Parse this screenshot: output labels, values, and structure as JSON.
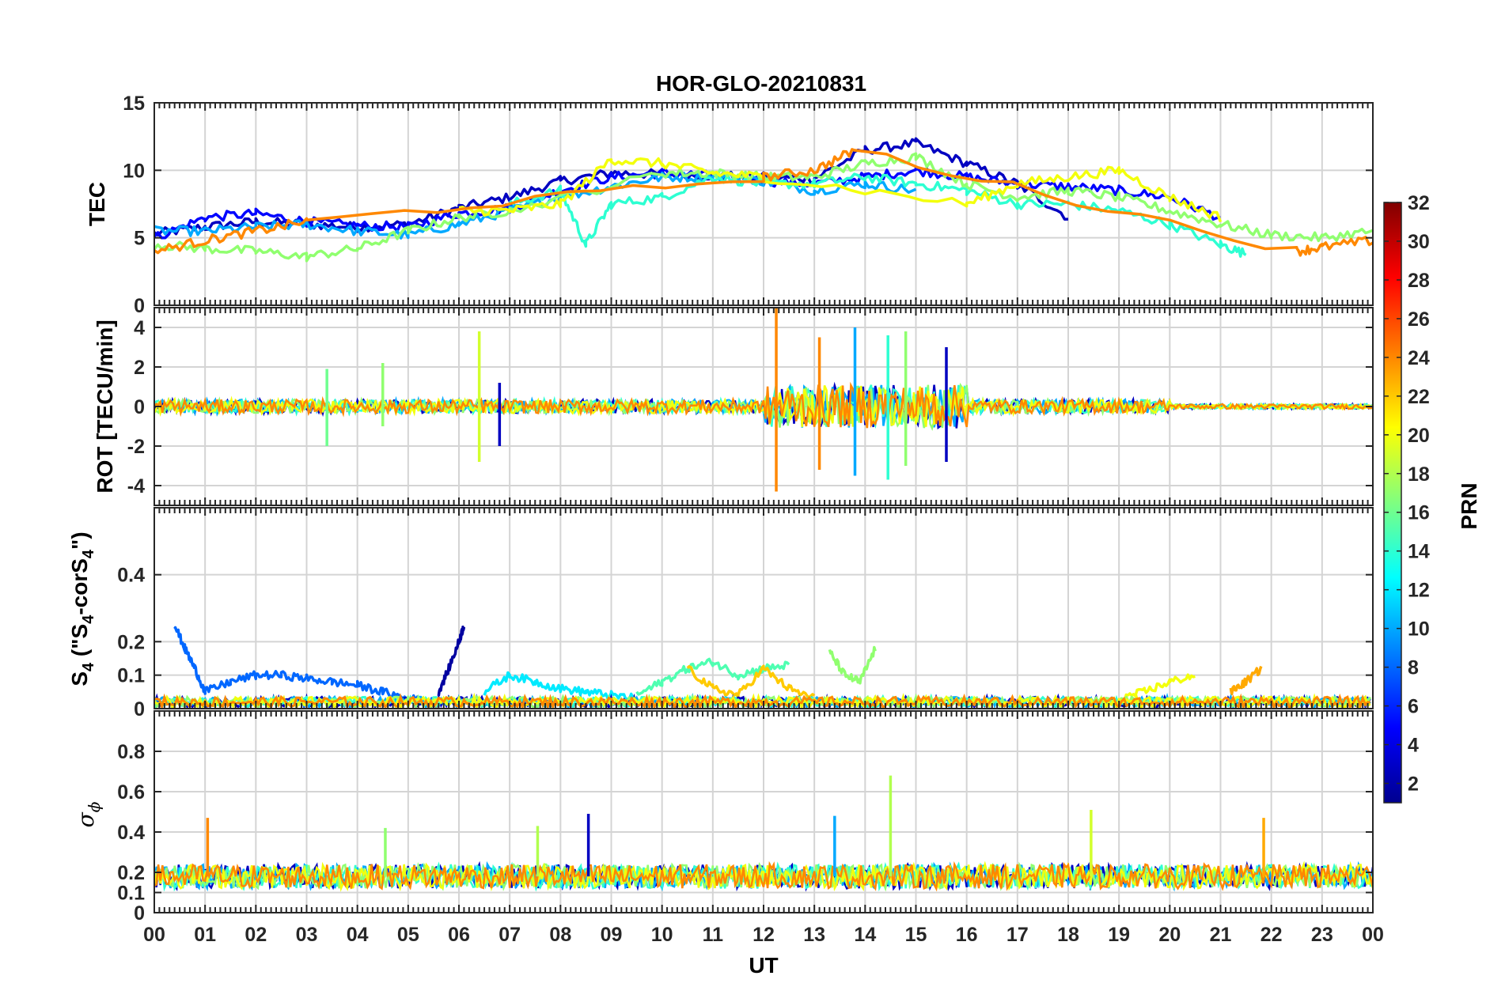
{
  "chart_data": {
    "type": "line",
    "title": "HOR-GLO-20210831",
    "xlabel": "UT",
    "x_tick_labels": [
      "00",
      "01",
      "02",
      "03",
      "04",
      "05",
      "06",
      "07",
      "08",
      "09",
      "10",
      "11",
      "12",
      "13",
      "14",
      "15",
      "16",
      "17",
      "18",
      "19",
      "20",
      "21",
      "22",
      "23",
      "00"
    ],
    "xlim": [
      0,
      24
    ],
    "colorbar": {
      "label": "PRN",
      "colormap": "jet",
      "range": [
        1,
        32
      ],
      "tick_labels": [
        "2",
        "4",
        "6",
        "8",
        "10",
        "12",
        "14",
        "16",
        "18",
        "20",
        "22",
        "24",
        "26",
        "28",
        "30",
        "32"
      ],
      "tick_values": [
        2,
        4,
        6,
        8,
        10,
        12,
        14,
        16,
        18,
        20,
        22,
        24,
        26,
        28,
        30,
        32
      ]
    },
    "panels": [
      {
        "name": "TEC",
        "ylabel": "TEC",
        "ylim": [
          0,
          15
        ],
        "yticks": [
          0,
          5,
          10,
          15
        ],
        "ytick_labels": [
          "0",
          "5",
          "10",
          "15"
        ],
        "series": [
          {
            "prn": 3,
            "x": [
              0,
              1,
              2,
              3,
              4,
              5,
              6,
              7,
              8,
              9,
              10,
              11,
              12,
              13,
              14,
              15,
              16,
              17,
              18
            ],
            "y": [
              5.3,
              5.8,
              6.2,
              6.0,
              5.8,
              6.0,
              7.2,
              8.0,
              9.2,
              9.8,
              9.7,
              9.6,
              9.5,
              9.4,
              11.5,
              12,
              10.5,
              9.0,
              6.5
            ]
          },
          {
            "prn": 5,
            "x": [
              0,
              1,
              2,
              3,
              4,
              5,
              6,
              7,
              8,
              9,
              10,
              11,
              12,
              13,
              14,
              15,
              16,
              17,
              18,
              19,
              20,
              21
            ],
            "y": [
              5.0,
              6.5,
              6.8,
              6.2,
              5.9,
              5.8,
              6.8,
              7.2,
              8.5,
              9.5,
              9.8,
              9.6,
              9.2,
              9.0,
              9.5,
              10.0,
              9.5,
              9.0,
              8.8,
              8.5,
              8.0,
              6.5
            ]
          },
          {
            "prn": 10,
            "x": [
              0,
              1,
              2,
              3,
              4,
              5,
              6,
              7,
              8,
              9,
              10,
              11,
              12,
              13,
              14,
              15
            ],
            "y": [
              5.5,
              5.5,
              5.8,
              6.0,
              5.5,
              5.2,
              6.0,
              7.0,
              8.0,
              8.8,
              9.5,
              9.5,
              9.2,
              8.5,
              9.0,
              8.5
            ]
          },
          {
            "prn": 14,
            "x": [
              7,
              8,
              8.5,
              9,
              10,
              11,
              12,
              13,
              14,
              15,
              16,
              17,
              18,
              19,
              20,
              21,
              21.5
            ],
            "y": [
              7.5,
              8.5,
              4.5,
              7.5,
              8.0,
              9.5,
              9.0,
              9.0,
              9.5,
              9.0,
              8.5,
              7.5,
              7.5,
              7.0,
              6.0,
              4.5,
              3.8
            ]
          },
          {
            "prn": 17,
            "x": [
              0,
              1,
              2,
              3,
              4,
              5,
              6,
              7,
              10,
              11,
              12,
              13,
              14,
              15,
              16,
              17,
              18,
              19,
              20,
              21,
              22,
              23,
              24
            ],
            "y": [
              4.5,
              4.2,
              4.0,
              3.6,
              4.2,
              5.5,
              6.5,
              7.0,
              9.8,
              9.8,
              9.5,
              9.5,
              10.5,
              11.0,
              9.0,
              8.0,
              8.5,
              8.0,
              7.0,
              6.0,
              5.2,
              5.0,
              5.5
            ]
          },
          {
            "prn": 20,
            "x": [
              6,
              7,
              8,
              9,
              10,
              11,
              12,
              16,
              17,
              18,
              19,
              20,
              21
            ],
            "y": [
              7.0,
              7.0,
              7.5,
              10.8,
              10.5,
              9.8,
              9.5,
              7.5,
              9.0,
              9.5,
              10.0,
              8.0,
              6.5
            ]
          },
          {
            "prn": 24,
            "x": [
              0,
              1,
              2,
              3,
              12,
              13,
              13.8,
              22.5,
              23,
              24
            ],
            "y": [
              4.0,
              4.8,
              5.5,
              6.2,
              9.5,
              10.0,
              11.5,
              4.0,
              4.3,
              4.8
            ]
          }
        ]
      },
      {
        "name": "ROT",
        "ylabel": "ROT [TECU/min]",
        "ylim": [
          -5,
          5
        ],
        "yticks": [
          -4,
          -2,
          0,
          2,
          4
        ],
        "ytick_labels": [
          "-4",
          "-2",
          "0",
          "2",
          "4"
        ],
        "spikes": [
          {
            "prn": 16,
            "x": 3.4,
            "min": -2.0,
            "max": 1.9
          },
          {
            "prn": 17,
            "x": 4.5,
            "min": -1.0,
            "max": 2.2
          },
          {
            "prn": 19,
            "x": 6.4,
            "min": -2.8,
            "max": 3.8
          },
          {
            "prn": 3,
            "x": 6.8,
            "min": -2.0,
            "max": 1.2
          },
          {
            "prn": 24,
            "x": 12.25,
            "min": -4.3,
            "max": 5.0
          },
          {
            "prn": 24,
            "x": 13.1,
            "min": -3.2,
            "max": 3.5
          },
          {
            "prn": 10,
            "x": 13.8,
            "min": -3.5,
            "max": 4.0
          },
          {
            "prn": 14,
            "x": 14.45,
            "min": -3.7,
            "max": 3.6
          },
          {
            "prn": 17,
            "x": 14.8,
            "min": -3.0,
            "max": 3.8
          },
          {
            "prn": 3,
            "x": 15.6,
            "min": -2.8,
            "max": 3.0
          }
        ]
      },
      {
        "name": "S4",
        "ylabel": "S4 (\"S4-corS4\")",
        "ylabel_parts": [
          "S",
          "4",
          " (\"S",
          "4",
          "-corS",
          "4",
          "\")"
        ],
        "ylim": [
          0,
          0.6
        ],
        "yticks": [
          0,
          0.1,
          0.2,
          0.4
        ],
        "ytick_labels": [
          "0",
          "0.1",
          "0.2",
          "0.4"
        ],
        "series": [
          {
            "prn": 8,
            "x": [
              0.4,
              0.6,
              0.8,
              1.0,
              1.5,
              2.0,
              2.5,
              3.0,
              3.5,
              4.0,
              4.5,
              5.0,
              5.5
            ],
            "y": [
              0.25,
              0.18,
              0.12,
              0.05,
              0.08,
              0.1,
              0.1,
              0.09,
              0.08,
              0.07,
              0.05,
              0.03,
              0.02
            ]
          },
          {
            "prn": 2,
            "x": [
              5.6,
              5.8,
              6.0,
              6.1
            ],
            "y": [
              0.05,
              0.12,
              0.2,
              0.25
            ]
          },
          {
            "prn": 12,
            "x": [
              6.5,
              7.0,
              7.5,
              8.0,
              8.5,
              9.0,
              9.5
            ],
            "y": [
              0.05,
              0.1,
              0.08,
              0.06,
              0.05,
              0.04,
              0.03
            ]
          },
          {
            "prn": 15,
            "x": [
              9.5,
              10.0,
              10.5,
              11.0,
              11.5,
              12.0,
              12.5
            ],
            "y": [
              0.04,
              0.08,
              0.12,
              0.14,
              0.1,
              0.12,
              0.13
            ]
          },
          {
            "prn": 17,
            "x": [
              13.3,
              13.6,
              13.9,
              14.2
            ],
            "y": [
              0.17,
              0.1,
              0.08,
              0.18
            ]
          },
          {
            "prn": 22,
            "x": [
              10.5,
              11,
              11.5,
              12,
              12.5,
              13
            ],
            "y": [
              0.12,
              0.06,
              0.04,
              0.12,
              0.06,
              0.03
            ]
          },
          {
            "prn": 20,
            "x": [
              19,
              19.5,
              20,
              20.5
            ],
            "y": [
              0.03,
              0.05,
              0.08,
              0.1
            ]
          },
          {
            "prn": 23,
            "x": [
              21.2,
              21.5,
              21.8
            ],
            "y": [
              0.05,
              0.08,
              0.12
            ]
          }
        ]
      },
      {
        "name": "sigma_phi",
        "ylabel": "σ ϕ",
        "ylabel_symbol": "σ",
        "ylabel_subscript": "ϕ",
        "ylim": [
          0,
          1.0
        ],
        "yticks": [
          0,
          0.1,
          0.2,
          0.4,
          0.6,
          0.8
        ],
        "ytick_labels": [
          "0",
          "0.1",
          "0.2",
          "0.4",
          "0.6",
          "0.8"
        ],
        "spikes": [
          {
            "prn": 24,
            "x": 1.05,
            "max": 0.47
          },
          {
            "prn": 17,
            "x": 4.55,
            "max": 0.42
          },
          {
            "prn": 3,
            "x": 8.55,
            "max": 0.49
          },
          {
            "prn": 18,
            "x": 7.55,
            "max": 0.43
          },
          {
            "prn": 10,
            "x": 13.4,
            "max": 0.48
          },
          {
            "prn": 18,
            "x": 14.5,
            "max": 0.68
          },
          {
            "prn": 19,
            "x": 18.45,
            "max": 0.51
          },
          {
            "prn": 23,
            "x": 21.85,
            "max": 0.47
          }
        ]
      }
    ]
  }
}
